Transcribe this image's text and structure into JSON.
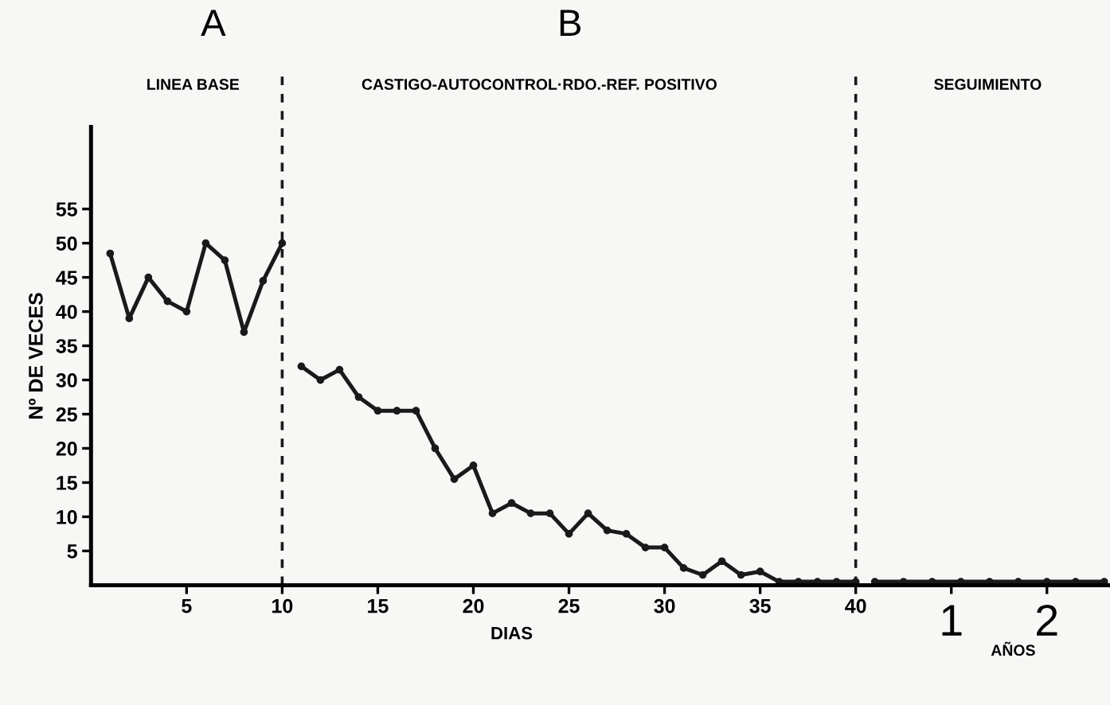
{
  "chart_data": {
    "type": "line",
    "xlabel": "DIAS",
    "ylabel": "Nº DE VECES",
    "series": [
      {
        "color": "#1a1a1a",
        "x": [
          1,
          2,
          3,
          4,
          5,
          6,
          7,
          8,
          9,
          10
        ],
        "values": [
          48.5,
          39,
          45,
          41.5,
          40,
          50,
          47.5,
          37,
          44.5,
          50
        ]
      },
      {
        "color": "#1a1a1a",
        "x": [
          11,
          12,
          13,
          14,
          15,
          16,
          17,
          18,
          19,
          20,
          21,
          22,
          23,
          24,
          25,
          26,
          27,
          28,
          29,
          30,
          31,
          32,
          33,
          34,
          35,
          36,
          37,
          38,
          39,
          40
        ],
        "values": [
          32,
          30,
          31.5,
          27.5,
          25.5,
          25.5,
          25.5,
          20,
          15.5,
          17.5,
          10.5,
          12,
          10.5,
          10.5,
          7.5,
          10.5,
          8,
          7.5,
          5.5,
          5.5,
          2.5,
          1.5,
          3.5,
          1.5,
          2,
          0.5,
          0.5,
          0.5,
          0.5,
          0.5
        ]
      },
      {
        "color": "#1a1a1a",
        "x": [
          41,
          42.5,
          44,
          45.5,
          47,
          48.5,
          50,
          51.5,
          53
        ],
        "values": [
          0.5,
          0.5,
          0.5,
          0.5,
          0.5,
          0.5,
          0.5,
          0.5,
          0.5
        ]
      }
    ],
    "xlim": [
      0,
      53.3
    ],
    "ylim": [
      0,
      67
    ],
    "xticks": [
      5,
      10,
      15,
      20,
      25,
      30,
      35,
      40,
      {
        "value": 45,
        "label": null
      },
      {
        "value": 50,
        "label": null
      }
    ],
    "yticks": [
      5,
      10,
      15,
      20,
      25,
      30,
      35,
      40,
      45,
      50,
      55
    ],
    "ref_lines": [
      {
        "axis": "x",
        "value": 10,
        "line_style": "dashed",
        "color": "#1a1a1a"
      },
      {
        "axis": "x",
        "value": 40,
        "line_style": "dashed",
        "color": "#1a1a1a"
      }
    ],
    "annotations": [
      "A",
      "B",
      "LINEA BASE",
      "CASTIGO-AUTOCONTROL·RDO.-REF. POSITIVO",
      "SEGUIMIENTO",
      "1",
      "2",
      "AÑOS"
    ],
    "marker": "circle",
    "line_style": "solid",
    "grid": false,
    "legend": false
  }
}
